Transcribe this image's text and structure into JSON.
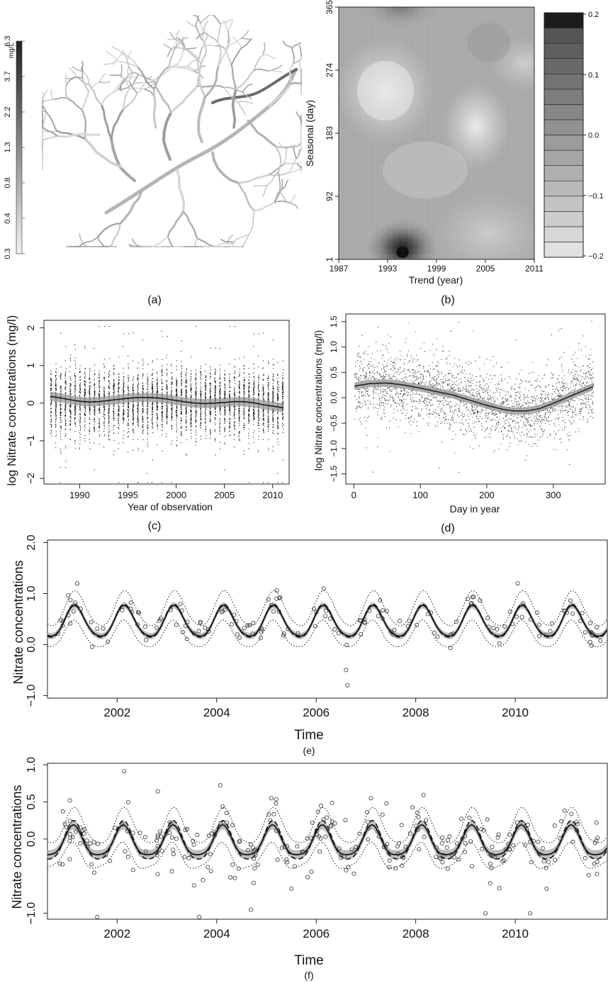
{
  "panels": {
    "a": {
      "label": "(a)"
    },
    "b": {
      "label": "(b)"
    },
    "c": {
      "label": "(c)"
    },
    "d": {
      "label": "(d)"
    },
    "e": {
      "label": "(e)"
    },
    "f": {
      "label": "(f)"
    }
  },
  "chart_data": [
    {
      "panel": "a",
      "type": "map",
      "colorbar": {
        "unit": "mg/L",
        "ticks": [
          "0.3",
          "0.4",
          "0.8",
          "1.3",
          "2.2",
          "3.7",
          "6.3"
        ]
      }
    },
    {
      "panel": "b",
      "type": "heatmap",
      "xlabel": "Trend (year)",
      "ylabel": "Seasonal (day)",
      "xticks": [
        "1987",
        "1993",
        "1999",
        "2005",
        "2011"
      ],
      "yticks": [
        "1",
        "92",
        "183",
        "274",
        "365"
      ],
      "xlim": [
        1987,
        2011
      ],
      "ylim": [
        1,
        365
      ],
      "colorbar": {
        "ticks": [
          "0.2",
          "0.1",
          "0.0",
          "−0.1",
          "−0.2"
        ],
        "range": [
          -0.2,
          0.2
        ]
      },
      "features": [
        {
          "x": 1993,
          "y": 265,
          "value": -0.18
        },
        {
          "x": 2004,
          "y": 200,
          "value": -0.12
        },
        {
          "x": 1995,
          "y": 15,
          "value": 0.2
        },
        {
          "x": 1995,
          "y": 360,
          "value": 0.1
        }
      ]
    },
    {
      "panel": "c",
      "type": "scatter",
      "xlabel": "Year of observation",
      "ylabel": "log Nitrate concentrations (mg/l)",
      "xticks": [
        "1990",
        "1995",
        "2000",
        "2005",
        "2010"
      ],
      "yticks": [
        "−2",
        "−1",
        "0",
        "1",
        "2"
      ],
      "xlim": [
        1986.3,
        2011.7
      ],
      "ylim": [
        -2.15,
        2.2
      ],
      "trend": {
        "x": [
          1987,
          1988,
          1989,
          1990,
          1991,
          1992,
          1993,
          1994,
          1995,
          1996,
          1997,
          1998,
          1999,
          2000,
          2001,
          2002,
          2003,
          2004,
          2005,
          2006,
          2007,
          2008,
          2009,
          2010,
          2011
        ],
        "y": [
          0.18,
          0.14,
          0.09,
          0.05,
          0.03,
          0.04,
          0.07,
          0.1,
          0.13,
          0.15,
          0.15,
          0.14,
          0.11,
          0.07,
          0.03,
          0.0,
          -0.01,
          0.0,
          0.02,
          0.04,
          0.04,
          0.01,
          -0.04,
          -0.08,
          -0.12
        ]
      }
    },
    {
      "panel": "d",
      "type": "scatter",
      "xlabel": "Day in year",
      "ylabel": "log Nitrate concentrations (mg/l)",
      "xticks": [
        "0",
        "100",
        "200",
        "300"
      ],
      "yticks": [
        "−1.5",
        "−1.0",
        "−0.5",
        "0.0",
        "0.5",
        "1.0",
        "1.5"
      ],
      "xlim": [
        -12,
        378
      ],
      "ylim": [
        -1.7,
        1.65
      ],
      "curve": {
        "x": [
          1,
          25,
          50,
          75,
          100,
          125,
          150,
          175,
          200,
          225,
          240,
          260,
          280,
          300,
          320,
          340,
          360
        ],
        "y": [
          0.23,
          0.28,
          0.29,
          0.25,
          0.19,
          0.12,
          0.05,
          -0.05,
          -0.15,
          -0.23,
          -0.26,
          -0.26,
          -0.21,
          -0.11,
          0.0,
          0.11,
          0.22
        ]
      }
    },
    {
      "panel": "e",
      "type": "line",
      "xlabel": "Time",
      "ylabel": "Nitrate concentrations",
      "xticks": [
        "2002",
        "2004",
        "2006",
        "2008",
        "2010"
      ],
      "yticks": [
        "−1.0",
        "0.0",
        "1.0",
        "2.0"
      ],
      "xlim": [
        2000.6,
        2011.85
      ],
      "ylim": [
        -1.05,
        2.05
      ],
      "model": {
        "mean": 0.43,
        "amplitude": 0.3,
        "peak_phase": 0.15,
        "band": 0.06,
        "interval": 0.25
      },
      "outliers": [
        {
          "x": 2006.6,
          "y": -0.5
        },
        {
          "x": 2006.63,
          "y": -0.8
        },
        {
          "x": 2010.05,
          "y": 1.2
        },
        {
          "x": 2001.2,
          "y": 1.2
        }
      ]
    },
    {
      "panel": "f",
      "type": "line",
      "xlabel": "Time",
      "ylabel": "Nitrate concentrations",
      "xticks": [
        "2002",
        "2004",
        "2006",
        "2008",
        "2010"
      ],
      "yticks": [
        "−1.0",
        "0.0",
        "0.5",
        "1.0"
      ],
      "ylim_ticks_note": "",
      "xlim": [
        2000.6,
        2011.85
      ],
      "ylim": [
        -1.08,
        1.02
      ],
      "model": {
        "mean": -0.05,
        "amplitude": 0.2,
        "peak_phase": 0.12,
        "band": 0.06,
        "interval": 0.2
      },
      "outliers": [
        {
          "x": 2001.6,
          "y": -1.05
        },
        {
          "x": 2003.65,
          "y": -1.05
        },
        {
          "x": 2009.4,
          "y": -1.0
        },
        {
          "x": 2010.3,
          "y": -1.0
        },
        {
          "x": 2001.05,
          "y": 0.52
        },
        {
          "x": 2005.1,
          "y": 0.55
        },
        {
          "x": 2007.1,
          "y": 0.55
        }
      ]
    }
  ]
}
